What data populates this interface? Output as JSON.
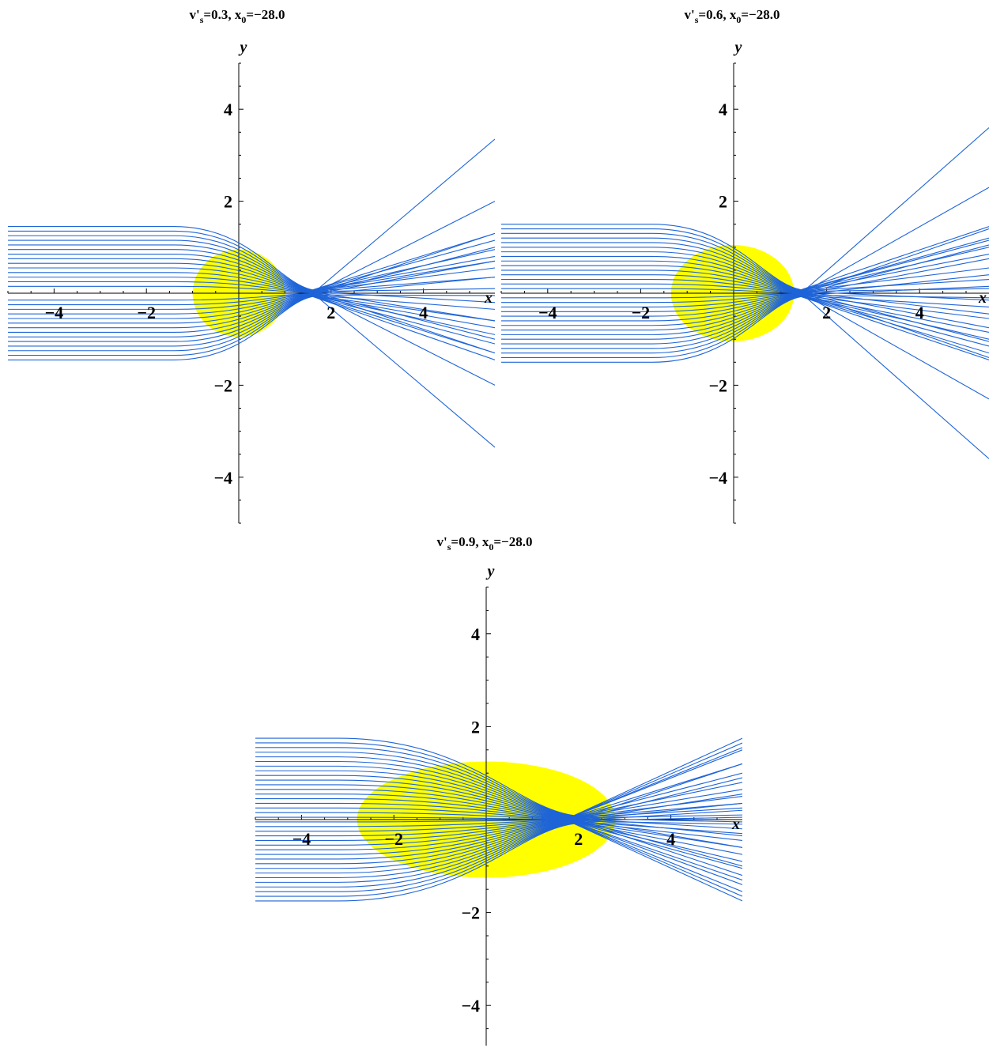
{
  "chart_data": [
    {
      "type": "line",
      "title": "v's=0.3, x0=−28.0",
      "title_parts": {
        "v": "v'",
        "v_sub": "s",
        "v_val": "=0.3, x",
        "x_sub": "0",
        "x_val": "=−28.0"
      },
      "xlabel": "x",
      "ylabel": "y",
      "xlim": [
        -5.0,
        5.4
      ],
      "ylim": [
        -5,
        5
      ],
      "xticks": [
        "−4",
        "−2",
        "2",
        "4"
      ],
      "yticks": [
        "4",
        "2",
        "−2",
        "−4"
      ],
      "fill_color": "#ffff00",
      "line_color": "#1e64d8",
      "region": {
        "x_left": -1.0,
        "x_right": 1.0,
        "y_top": 0.95,
        "y_bottom": -0.95
      },
      "focus": [
        1.6,
        0.0
      ],
      "series": [
        {
          "y0": 1.45,
          "y_end": 1.3
        },
        {
          "y0": 1.35,
          "y_end": 1.15
        },
        {
          "y0": 1.25,
          "y_end": 0.95
        },
        {
          "y0": 1.15,
          "y_end": 0.8
        },
        {
          "y0": 1.05,
          "y_end": 0.7
        },
        {
          "y0": 0.95,
          "y_end": 0.55
        },
        {
          "y0": 0.85,
          "y_end": 0.35
        },
        {
          "y0": 0.75,
          "y_end": 0.1
        },
        {
          "y0": 0.65,
          "y_end": -0.2
        },
        {
          "y0": 0.55,
          "y_end": -0.6
        },
        {
          "y0": 0.45,
          "y_end": -1.0
        },
        {
          "y0": 0.35,
          "y_end": -1.3
        },
        {
          "y0": 0.25,
          "y_end": -2.0
        },
        {
          "y0": 0.15,
          "y_end": -3.35
        },
        {
          "y0": -0.15,
          "y_end": 3.35
        },
        {
          "y0": -0.25,
          "y_end": 2.0
        },
        {
          "y0": -0.35,
          "y_end": 1.3
        },
        {
          "y0": -0.45,
          "y_end": 1.0
        },
        {
          "y0": -0.55,
          "y_end": 0.7
        },
        {
          "y0": -0.65,
          "y_end": 0.35
        },
        {
          "y0": -0.75,
          "y_end": -0.05
        },
        {
          "y0": -0.85,
          "y_end": -0.35
        },
        {
          "y0": -0.95,
          "y_end": -0.6
        },
        {
          "y0": -1.05,
          "y_end": -0.75
        },
        {
          "y0": -1.15,
          "y_end": -0.9
        },
        {
          "y0": -1.25,
          "y_end": -1.1
        },
        {
          "y0": -1.35,
          "y_end": -1.3
        },
        {
          "y0": -1.45,
          "y_end": -1.45
        }
      ]
    },
    {
      "type": "line",
      "title": "v's=0.6, x0=−28.0",
      "title_parts": {
        "v": "v'",
        "v_sub": "s",
        "v_val": "=0.6, x",
        "x_sub": "0",
        "x_val": "=−28.0"
      },
      "xlabel": "x",
      "ylabel": "y",
      "xlim": [
        -5.0,
        5.4
      ],
      "ylim": [
        -5,
        5
      ],
      "xticks": [
        "−4",
        "−2",
        "2",
        "4"
      ],
      "yticks": [
        "4",
        "2",
        "−2",
        "−4"
      ],
      "fill_color": "#ffff00",
      "line_color": "#1e64d8",
      "region": {
        "x_left": -1.35,
        "x_right": 1.3,
        "y_top": 1.05,
        "y_bottom": -1.05
      },
      "focus": [
        1.45,
        0.0
      ],
      "series": [
        {
          "y0": 1.5,
          "y_end": 1.45
        },
        {
          "y0": 1.4,
          "y_end": 1.2
        },
        {
          "y0": 1.3,
          "y_end": 1.15
        },
        {
          "y0": 1.2,
          "y_end": 1.0
        },
        {
          "y0": 1.1,
          "y_end": 0.85
        },
        {
          "y0": 1.0,
          "y_end": 0.55
        },
        {
          "y0": 0.9,
          "y_end": 0.3
        },
        {
          "y0": 0.8,
          "y_end": 0.1
        },
        {
          "y0": 0.7,
          "y_end": -0.15
        },
        {
          "y0": 0.6,
          "y_end": -0.45
        },
        {
          "y0": 0.5,
          "y_end": -0.75
        },
        {
          "y0": 0.4,
          "y_end": -1.05
        },
        {
          "y0": 0.3,
          "y_end": -1.4
        },
        {
          "y0": 0.2,
          "y_end": -2.3
        },
        {
          "y0": 0.1,
          "y_end": -3.6
        },
        {
          "y0": -0.1,
          "y_end": 3.6
        },
        {
          "y0": -0.2,
          "y_end": 2.3
        },
        {
          "y0": -0.3,
          "y_end": 1.4
        },
        {
          "y0": -0.4,
          "y_end": 1.05
        },
        {
          "y0": -0.5,
          "y_end": 0.75
        },
        {
          "y0": -0.6,
          "y_end": 0.4
        },
        {
          "y0": -0.7,
          "y_end": 0.15
        },
        {
          "y0": -0.8,
          "y_end": -0.1
        },
        {
          "y0": -0.9,
          "y_end": -0.3
        },
        {
          "y0": -1.0,
          "y_end": -0.55
        },
        {
          "y0": -1.1,
          "y_end": -0.85
        },
        {
          "y0": -1.2,
          "y_end": -1.0
        },
        {
          "y0": -1.3,
          "y_end": -1.15
        },
        {
          "y0": -1.4,
          "y_end": -1.3
        },
        {
          "y0": -1.5,
          "y_end": -1.45
        }
      ]
    },
    {
      "type": "line",
      "title": "v's=0.9, x0=−28.0",
      "title_parts": {
        "v": "v'",
        "v_sub": "s",
        "v_val": "=0.9, x",
        "x_sub": "0",
        "x_val": "=−28.0"
      },
      "xlabel": "x",
      "ylabel": "y",
      "xlim": [
        -5.0,
        5.4
      ],
      "ylim": [
        -5,
        5
      ],
      "xticks": [
        "−4",
        "−2",
        "2",
        "4"
      ],
      "yticks": [
        "4",
        "2",
        "−2",
        "−4"
      ],
      "fill_color": "#ffff00",
      "line_color": "#1e64d8",
      "region": {
        "x_left": -2.8,
        "x_right": 2.8,
        "y_top": 1.25,
        "y_bottom": -1.25
      },
      "focus": [
        1.9,
        0.0
      ],
      "series": [
        {
          "y0": 1.75,
          "y_end": 1.75
        },
        {
          "y0": 1.65,
          "y_end": 1.65
        },
        {
          "y0": 1.55,
          "y_end": 1.55
        },
        {
          "y0": 1.45,
          "y_end": 1.5
        },
        {
          "y0": 1.35,
          "y_end": 1.2
        },
        {
          "y0": 1.25,
          "y_end": 1.0
        },
        {
          "y0": 1.15,
          "y_end": 0.8
        },
        {
          "y0": 1.05,
          "y_end": 0.65
        },
        {
          "y0": 0.95,
          "y_end": 0.5
        },
        {
          "y0": 0.85,
          "y_end": 0.35
        },
        {
          "y0": 0.75,
          "y_end": 0.25
        },
        {
          "y0": 0.65,
          "y_end": 0.1
        },
        {
          "y0": 0.55,
          "y_end": -0.05
        },
        {
          "y0": 0.45,
          "y_end": -0.2
        },
        {
          "y0": 0.35,
          "y_end": -0.35
        },
        {
          "y0": 0.25,
          "y_end": -0.6
        },
        {
          "y0": 0.15,
          "y_end": -1.0
        },
        {
          "y0": 0.05,
          "y_end": -1.2
        },
        {
          "y0": -0.05,
          "y_end": 1.2
        },
        {
          "y0": -0.15,
          "y_end": 0.9
        },
        {
          "y0": -0.25,
          "y_end": 0.55
        },
        {
          "y0": -0.35,
          "y_end": 0.35
        },
        {
          "y0": -0.45,
          "y_end": 0.2
        },
        {
          "y0": -0.55,
          "y_end": 0.05
        },
        {
          "y0": -0.65,
          "y_end": -0.1
        },
        {
          "y0": -0.75,
          "y_end": -0.3
        },
        {
          "y0": -0.85,
          "y_end": -0.45
        },
        {
          "y0": -0.95,
          "y_end": -0.6
        },
        {
          "y0": -1.05,
          "y_end": -0.75
        },
        {
          "y0": -1.15,
          "y_end": -0.9
        },
        {
          "y0": -1.25,
          "y_end": -1.05
        },
        {
          "y0": -1.35,
          "y_end": -1.3
        },
        {
          "y0": -1.45,
          "y_end": -1.4
        },
        {
          "y0": -1.55,
          "y_end": -1.55
        },
        {
          "y0": -1.65,
          "y_end": -1.65
        },
        {
          "y0": -1.75,
          "y_end": -1.75
        }
      ]
    }
  ]
}
